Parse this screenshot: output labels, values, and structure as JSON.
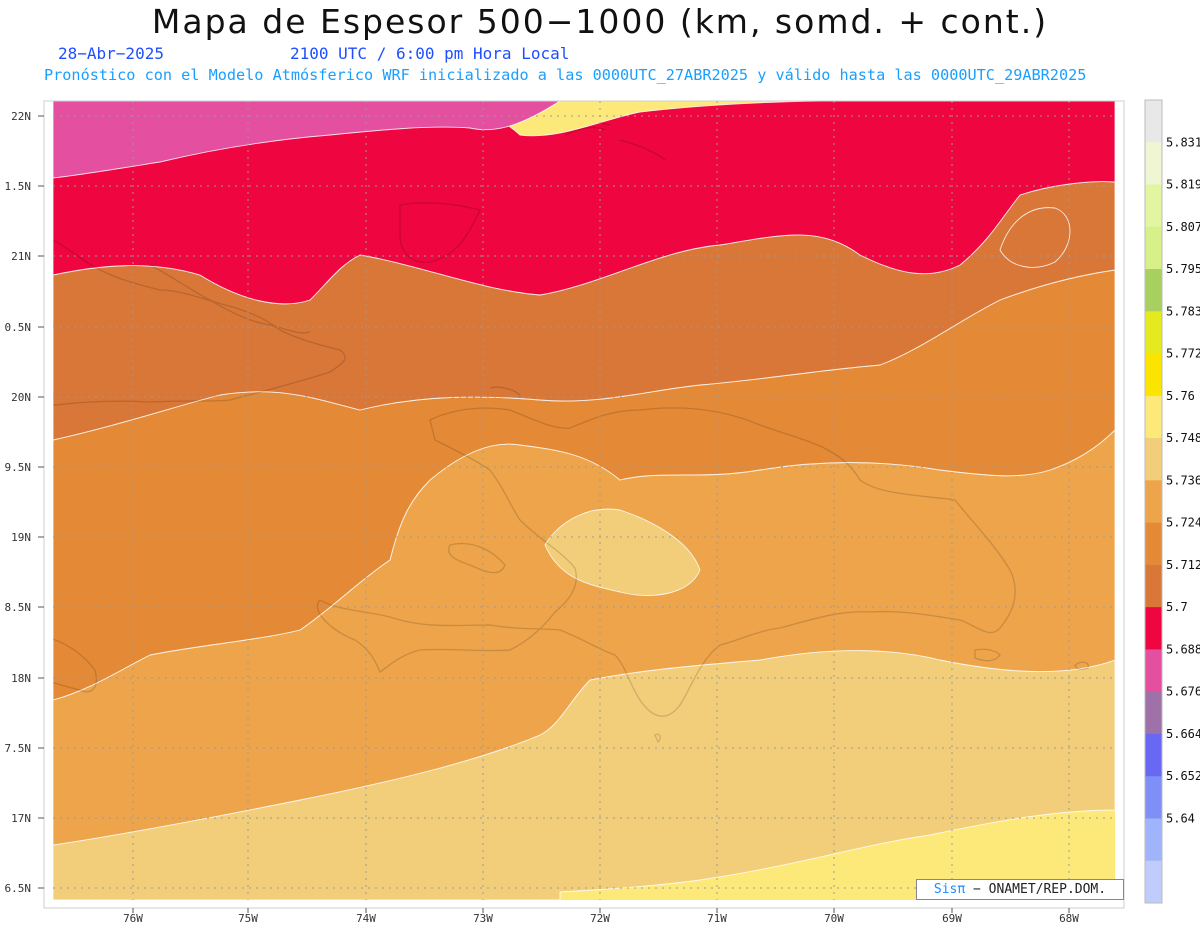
{
  "header": {
    "title": "Mapa de Espesor 500−1000 (km, somd. + cont.)",
    "date": "28−Abr−2025",
    "time": "2100 UTC / 6:00 pm Hora Local",
    "model_line": "Pronóstico con el Modelo Atmósferico WRF inicializado a las 0000UTC_27ABR2025 y válido hasta las  0000UTC_29ABR2025"
  },
  "axes": {
    "lat_labels": [
      "22N",
      "1.5N",
      "21N",
      "0.5N",
      "20N",
      "9.5N",
      "19N",
      "8.5N",
      "18N",
      "7.5N",
      "17N",
      "6.5N"
    ],
    "lon_labels": [
      "76W",
      "75W",
      "74W",
      "73W",
      "72W",
      "71W",
      "70W",
      "69W",
      "68W"
    ]
  },
  "colorbar": {
    "levels": [
      "5.831",
      "5.819",
      "5.807",
      "5.795",
      "5.783",
      "5.772",
      "5.76",
      "5.748",
      "5.736",
      "5.724",
      "5.712",
      "5.7",
      "5.688",
      "5.676",
      "5.664",
      "5.652",
      "5.64"
    ],
    "colors": [
      "#e8e8e8",
      "#f0f5d2",
      "#e2f5a0",
      "#d8f08a",
      "#a8d060",
      "#e4ea1e",
      "#fbe400",
      "#fde97a",
      "#f2cd7a",
      "#eda44a",
      "#e48a36",
      "#d97738",
      "#ef0540",
      "#e44fa0",
      "#9e72a8",
      "#6868f4",
      "#7f8ff8",
      "#9fb4fb",
      "#c0ccfb"
    ]
  },
  "field_colors": {
    "c5688": "#e44fa0",
    "c5700": "#ef0540",
    "c5712": "#d97738",
    "c5724": "#e48a36",
    "c5736": "#eda44a",
    "c5748": "#f2cd7a",
    "c5760": "#fde97a"
  },
  "credit": {
    "brand": "Sisπ",
    "text": "− ONAMET/REP.DOM."
  }
}
